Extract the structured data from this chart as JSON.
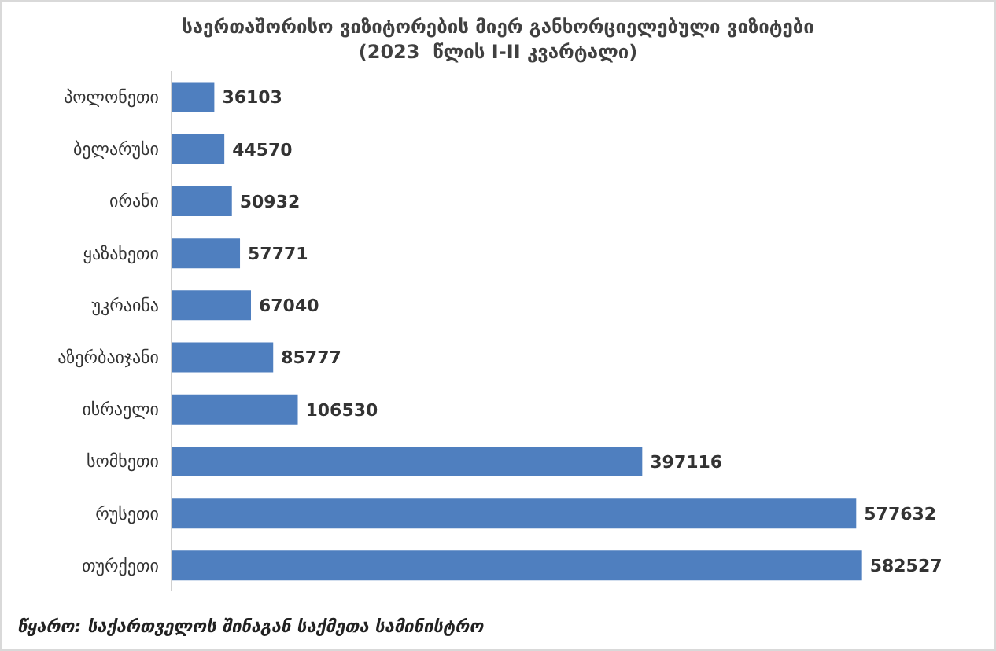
{
  "chart_data": {
    "type": "bar",
    "orientation": "horizontal",
    "title": "საერთაშორისო ვიზიტორების მიერ განხორციელებული ვიზიტები",
    "subtitle": "(2023  წლის I-II კვარტალი)",
    "categories": [
      "პოლონეთი",
      "ბელარუსი",
      "ირანი",
      "ყაზახეთი",
      "უკრაინა",
      "აზერბაიჯანი",
      "ისრაელი",
      "სომხეთი",
      "რუსეთი",
      "თურქეთი"
    ],
    "values": [
      36103,
      44570,
      50932,
      57771,
      67040,
      85777,
      106530,
      397116,
      577632,
      582527
    ],
    "color": "#4f7fbf",
    "data_labels": true,
    "tick_labels": "y",
    "annotations": [
      "წყარო: საქართველოს შინაგან საქმეთა სამინისტრო"
    ]
  }
}
